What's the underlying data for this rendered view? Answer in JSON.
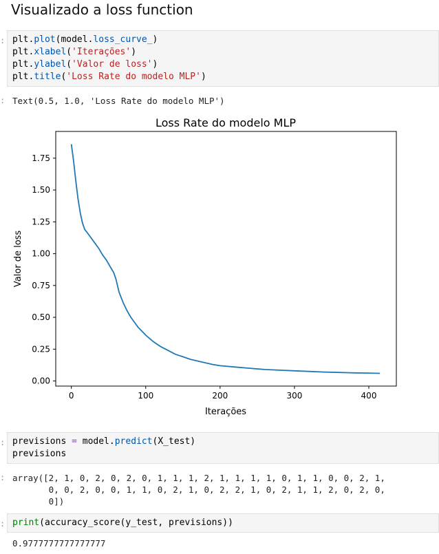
{
  "heading": "Visualizado a loss function",
  "cell1": {
    "lines": [
      [
        {
          "t": "plt."
        },
        {
          "t": "plot",
          "c": "kw"
        },
        {
          "t": "(model."
        },
        {
          "t": "loss_curve_",
          "c": "kw"
        },
        {
          "t": ")"
        }
      ],
      [
        {
          "t": "plt."
        },
        {
          "t": "xlabel",
          "c": "kw"
        },
        {
          "t": "("
        },
        {
          "t": "'Iterações'",
          "c": "st"
        },
        {
          "t": ")"
        }
      ],
      [
        {
          "t": "plt."
        },
        {
          "t": "ylabel",
          "c": "kw"
        },
        {
          "t": "("
        },
        {
          "t": "'Valor de loss'",
          "c": "st"
        },
        {
          "t": ")"
        }
      ],
      [
        {
          "t": "plt."
        },
        {
          "t": "title",
          "c": "kw"
        },
        {
          "t": "("
        },
        {
          "t": "'Loss Rate do modelo MLP'",
          "c": "st"
        },
        {
          "t": ")"
        }
      ]
    ],
    "output": "Text(0.5, 1.0, 'Loss Rate do modelo MLP')"
  },
  "cell2": {
    "lines": [
      [
        {
          "t": "previsions "
        },
        {
          "t": "=",
          "c": "op"
        },
        {
          "t": " model."
        },
        {
          "t": "predict",
          "c": "kw"
        },
        {
          "t": "(X_test)"
        }
      ],
      [
        {
          "t": "previsions"
        }
      ]
    ],
    "output": "array([2, 1, 0, 2, 0, 2, 0, 1, 1, 1, 2, 1, 1, 1, 1, 0, 1, 1, 0, 0, 2, 1,\n       0, 0, 2, 0, 0, 1, 1, 0, 2, 1, 0, 2, 2, 1, 0, 2, 1, 1, 2, 0, 2, 0,\n       0])"
  },
  "cell3": {
    "lines": [
      [
        {
          "t": "print",
          "c": "bi"
        },
        {
          "t": "(accuracy_score(y_test, previsions))"
        }
      ]
    ],
    "output": "0.9777777777777777"
  },
  "prompt_char": ":",
  "colors": {
    "line": "#1f77b4",
    "keyword": "#0055aa",
    "string": "#ba2121"
  },
  "chart_data": {
    "type": "line",
    "title": "Loss Rate do modelo MLP",
    "xlabel": "Iterações",
    "ylabel": "Valor de loss",
    "xlim": [
      -21,
      437
    ],
    "ylim": [
      -0.04,
      1.96
    ],
    "xticks": [
      0,
      100,
      200,
      300,
      400
    ],
    "xtick_labels": [
      "0",
      "100",
      "200",
      "300",
      "400"
    ],
    "yticks": [
      0.0,
      0.25,
      0.5,
      0.75,
      1.0,
      1.25,
      1.5,
      1.75
    ],
    "ytick_labels": [
      "0.00",
      "0.25",
      "0.50",
      "0.75",
      "1.00",
      "1.25",
      "1.50",
      "1.75"
    ],
    "grid": false,
    "series": [
      {
        "x": [
          0,
          3,
          6,
          9,
          12,
          15,
          18,
          22,
          27,
          32,
          37,
          42,
          47,
          52,
          57,
          60,
          62,
          64,
          66,
          70,
          75,
          80,
          85,
          90,
          95,
          100,
          110,
          120,
          130,
          140,
          150,
          160,
          175,
          190,
          200,
          220,
          240,
          260,
          280,
          300,
          320,
          340,
          360,
          380,
          400,
          415
        ],
        "y": [
          1.86,
          1.73,
          1.57,
          1.43,
          1.32,
          1.24,
          1.19,
          1.16,
          1.12,
          1.08,
          1.04,
          0.99,
          0.95,
          0.9,
          0.85,
          0.8,
          0.75,
          0.7,
          0.67,
          0.61,
          0.55,
          0.5,
          0.46,
          0.42,
          0.39,
          0.36,
          0.31,
          0.27,
          0.24,
          0.21,
          0.19,
          0.17,
          0.15,
          0.13,
          0.12,
          0.11,
          0.1,
          0.09,
          0.085,
          0.08,
          0.075,
          0.07,
          0.067,
          0.064,
          0.062,
          0.06
        ]
      }
    ]
  }
}
